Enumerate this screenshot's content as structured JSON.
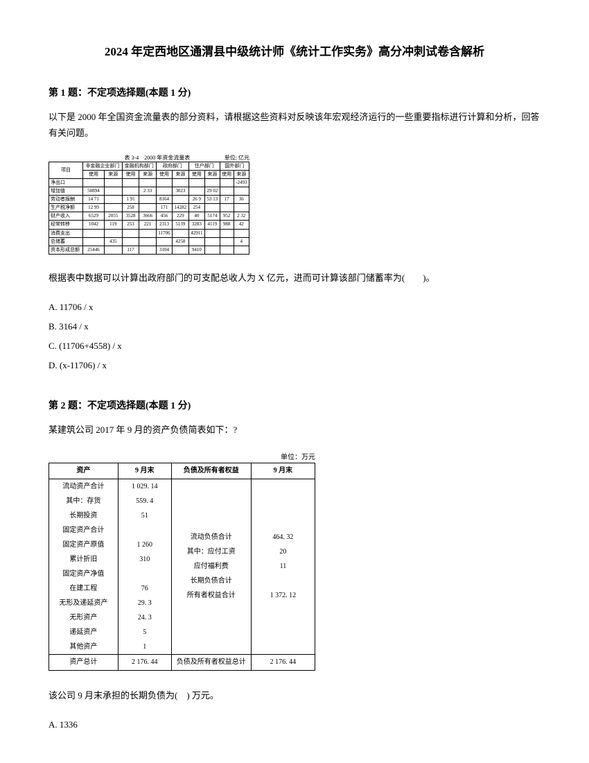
{
  "title": "2024 年定西地区通渭县中级统计师《统计工作实务》高分冲刺试卷含解析",
  "q1": {
    "header": "第 1 题：不定项选择题(本题 1 分)",
    "text": "以下是 2000 年全国资金流量表的部分资料，请根据这些资料对反映该年宏观经济运行的一些重要指标进行计算和分析，回答有关问题。",
    "table_caption_left": "表 3-4　2000 年资金流量表",
    "table_caption_right": "单位: 亿元",
    "sub_question": "根据表中数据可以计算出政府部门的可支配总收人为 X 亿元，进而可计算该部门储蓄率为(　　)。",
    "options": {
      "a": "A. 11706 / x",
      "b": "B. 3164 / x",
      "c": "C. (11706+4558) / x",
      "d": "D. (x-11706) / x"
    },
    "table": {
      "header_groups": [
        "项目",
        "非金融企业部门",
        "金融机构部门",
        "政府部门",
        "住户部门",
        "国外部门"
      ],
      "sub_headers": [
        "使用",
        "来源",
        "使用",
        "来源",
        "使用",
        "来源",
        "使用",
        "来源",
        "使用",
        "来源"
      ],
      "rows": [
        {
          "label": "净出口",
          "cells": [
            "",
            "",
            "",
            "",
            "",
            "",
            "",
            "",
            "",
            "-2493"
          ]
        },
        {
          "label": "增加值",
          "cells": [
            "50894",
            "",
            "",
            "2 33",
            "",
            "3023",
            "",
            "29 02",
            "",
            ""
          ]
        },
        {
          "label": "劳动者报酬",
          "cells": [
            "14 71",
            "",
            "1 91",
            "",
            "8164",
            "",
            "26 9",
            "53 13",
            "17",
            "36"
          ]
        },
        {
          "label": "生产税净额",
          "cells": [
            "12 99",
            "",
            "258",
            "",
            "171",
            "14282",
            "254",
            "",
            "",
            ""
          ]
        },
        {
          "label": "财产收入",
          "cells": [
            "6529",
            "2055",
            "3528",
            "3666",
            "456",
            "229",
            "40",
            "5174",
            "952",
            "2 32"
          ]
        },
        {
          "label": "经常转移",
          "cells": [
            "1042",
            "119",
            "253",
            "221",
            "2313",
            "5139",
            "3283",
            "4119",
            "988",
            "42"
          ]
        },
        {
          "label": "消费支出",
          "cells": [
            "",
            "",
            "",
            "",
            "11706",
            "",
            "42911",
            "",
            "",
            ""
          ]
        },
        {
          "label": "总储蓄",
          "cells": [
            "",
            "435",
            "",
            "",
            "",
            "4258",
            "",
            "",
            "",
            "4"
          ]
        },
        {
          "label": "资本形成总额",
          "cells": [
            "25446",
            "",
            "117",
            "",
            "3104",
            "",
            "9410",
            "",
            "",
            ""
          ]
        }
      ]
    }
  },
  "q2": {
    "header": "第 2 题：不定项选择题(本题 1 分)",
    "text": "某建筑公司 2017 年 9 月的资产负债简表如下：?",
    "table_caption": "单位：万元",
    "table": {
      "headers": [
        "资产",
        "9 月末",
        "负债及所有者权益",
        "9 月末"
      ],
      "left_rows": [
        {
          "label": "流动资产合计",
          "value": "1 029. 14"
        },
        {
          "label": "其中：存货",
          "value": "559. 4"
        },
        {
          "label": "长期投资",
          "value": "51"
        },
        {
          "label": "固定资产合计",
          "value": ""
        },
        {
          "label": "固定资产原值",
          "value": "1 260"
        },
        {
          "label": "累计折旧",
          "value": "310"
        },
        {
          "label": "固定资产净值",
          "value": ""
        },
        {
          "label": "在建工程",
          "value": "76"
        },
        {
          "label": "无形及递延资产",
          "value": "29. 3"
        },
        {
          "label": "无形资产",
          "value": "24. 3"
        },
        {
          "label": "递延资产",
          "value": "5"
        },
        {
          "label": "其他资产",
          "value": "1"
        }
      ],
      "right_rows": [
        {
          "label": "流动负债合计",
          "value": "464. 32"
        },
        {
          "label": "其中：应付工资",
          "value": "20"
        },
        {
          "label": "应付福利费",
          "value": "11"
        },
        {
          "label": "长期负债合计",
          "value": ""
        },
        {
          "label": "所有者权益合计",
          "value": "1 372. 12"
        }
      ],
      "footer": {
        "left_label": "资产总计",
        "left_value": "2 176. 44",
        "right_label": "负债及所有者权益总计",
        "right_value": "2 176. 44"
      }
    },
    "sub_question": "该公司 9 月末承担的长期负债为(　) 万元。",
    "options": {
      "a": "A. 1336"
    }
  }
}
